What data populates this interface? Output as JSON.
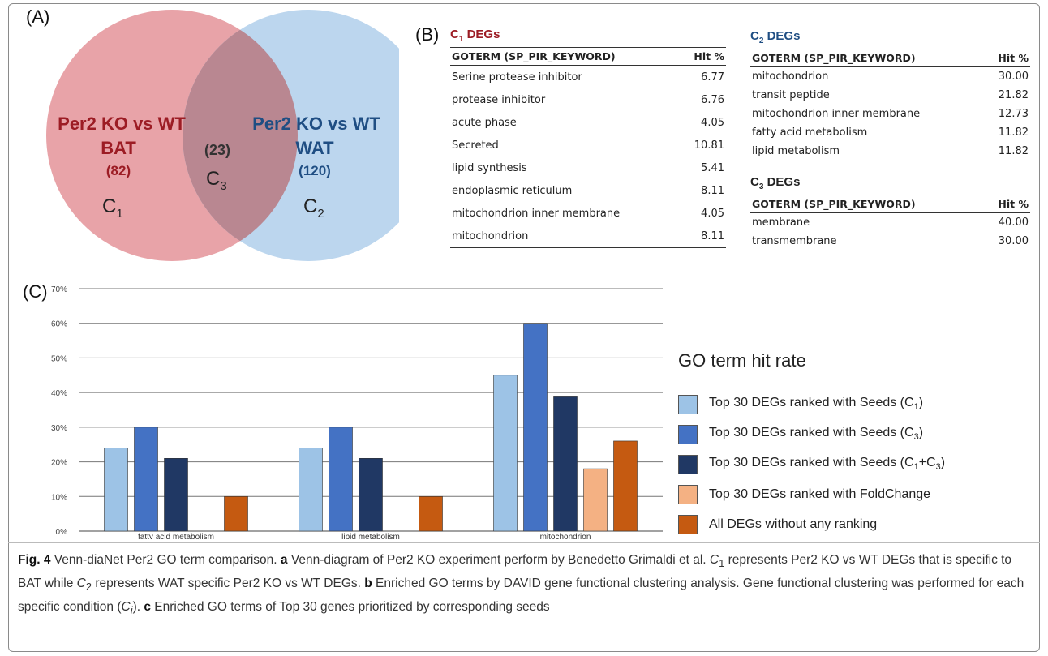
{
  "panel_a": {
    "label": "(A)",
    "left": {
      "line1": "Per2 KO vs WT",
      "line2": "BAT",
      "count": "(82)",
      "set": "C",
      "sub": "1"
    },
    "overlap": {
      "count": "(23)",
      "set": "C",
      "sub": "3"
    },
    "right": {
      "line1": "Per2 KO vs WT",
      "line2": "WAT",
      "count": "(120)",
      "set": "C",
      "sub": "2"
    },
    "colors": {
      "left": "#e8a3a8",
      "right": "#bcd6ee",
      "overlap": "#b98791",
      "left_text": "#9c1c24",
      "right_text": "#1f4e83"
    }
  },
  "panel_b": {
    "label": "(B)",
    "col_term": "GOTERM (SP_PIR_KEYWORD)",
    "col_hit": "Hit %",
    "c1": {
      "title": "C",
      "sub": "1",
      "suffix": " DEGs",
      "color": "#9c1c24",
      "rows": [
        {
          "term": "Serine protease inhibitor",
          "hit": "6.77"
        },
        {
          "term": "protease inhibitor",
          "hit": "6.76"
        },
        {
          "term": "acute phase",
          "hit": "4.05"
        },
        {
          "term": "Secreted",
          "hit": "10.81"
        },
        {
          "term": "lipid synthesis",
          "hit": "5.41"
        },
        {
          "term": "endoplasmic reticulum",
          "hit": "8.11"
        },
        {
          "term": "mitochondrion inner membrane",
          "hit": "4.05"
        },
        {
          "term": "mitochondrion",
          "hit": "8.11"
        }
      ]
    },
    "c2": {
      "title": "C",
      "sub": "2",
      "suffix": " DEGs",
      "color": "#1f4e83",
      "rows": [
        {
          "term": "mitochondrion",
          "hit": "30.00"
        },
        {
          "term": "transit peptide",
          "hit": "21.82"
        },
        {
          "term": "mitochondrion inner membrane",
          "hit": "12.73"
        },
        {
          "term": "fatty acid metabolism",
          "hit": "11.82"
        },
        {
          "term": "lipid metabolism",
          "hit": "11.82"
        }
      ]
    },
    "c3": {
      "title": "C",
      "sub": "3",
      "suffix": " DEGs",
      "color": "#222222",
      "rows": [
        {
          "term": "membrane",
          "hit": "40.00"
        },
        {
          "term": "transmembrane",
          "hit": "30.00"
        }
      ]
    }
  },
  "panel_c": {
    "label": "(C)"
  },
  "chart_data": {
    "type": "bar",
    "categories": [
      "fatty acid metabolism",
      "lipid metabolism",
      "mitochondrion"
    ],
    "y_ticks": [
      "0%",
      "10%",
      "20%",
      "30%",
      "40%",
      "50%",
      "60%",
      "70%"
    ],
    "ylim": [
      0,
      70
    ],
    "grid": true,
    "legend_title": "GO term hit rate",
    "legend_position": "right",
    "series": [
      {
        "name": "Top 30 DEGs ranked with Seeds (C1)",
        "label": "Top 30 DEGs ranked with Seeds (C",
        "sub": "1",
        "tail": ")",
        "color": "#9dc3e6",
        "values": [
          24,
          24,
          45
        ]
      },
      {
        "name": "Top 30 DEGs ranked with Seeds (C3)",
        "label": "Top 30 DEGs ranked with Seeds (C",
        "sub": "3",
        "tail": ")",
        "color": "#4472c4",
        "values": [
          30,
          30,
          60
        ]
      },
      {
        "name": "Top 30 DEGs ranked with Seeds (C1+C3)",
        "label": "Top 30 DEGs ranked with Seeds (C",
        "sub": "1",
        "tail": "+C",
        "sub2": "3",
        "tail2": ")",
        "color": "#203864",
        "values": [
          21,
          21,
          39
        ]
      },
      {
        "name": "Top 30 DEGs ranked with FoldChange",
        "label": "Top 30 DEGs ranked with FoldChange",
        "color": "#f4b183",
        "values": [
          0,
          0,
          18
        ]
      },
      {
        "name": "All DEGs without any ranking",
        "label": "All DEGs without any ranking",
        "color": "#c55a11",
        "values": [
          10,
          10,
          26
        ]
      }
    ]
  },
  "caption": {
    "fig": "Fig. 4",
    "t1": " Venn-diaNet Per2 GO term comparison. ",
    "a": "a",
    "t2": " Venn-diagram of Per2 KO experiment perform by Benedetto Grimaldi et al. ",
    "c1": "C",
    "c1s": "1",
    "t3": " represents Per2 KO vs WT DEGs that is specific to BAT while ",
    "c2": "C",
    "c2s": "2",
    "t4": " represents WAT specific Per2 KO vs WT DEGs. ",
    "b": "b",
    "t5": " Enriched GO terms by DAVID gene functional clustering analysis. Gene functional clustering was performed for each specific condition (",
    "ci": "C",
    "cis": "i",
    "t6": "). ",
    "c": "c",
    "t7": " Enriched GO terms of Top 30 genes prioritized by corresponding seeds"
  }
}
